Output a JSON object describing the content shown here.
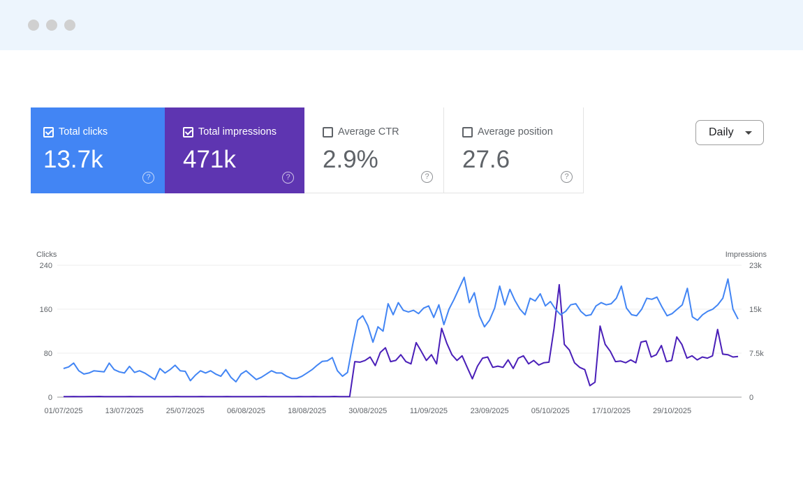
{
  "window": {
    "controls": [
      "dot-1",
      "dot-2",
      "dot-3"
    ]
  },
  "cards": [
    {
      "id": "clicks",
      "label": "Total clicks",
      "value": "13.7k",
      "checked": true,
      "color": "#4285f4"
    },
    {
      "id": "impressions",
      "label": "Total impressions",
      "value": "471k",
      "checked": true,
      "color": "#5e35b1"
    },
    {
      "id": "ctr",
      "label": "Average CTR",
      "value": "2.9%",
      "checked": false,
      "color": "#ffffff"
    },
    {
      "id": "position",
      "label": "Average position",
      "value": "27.6",
      "checked": false,
      "color": "#ffffff"
    }
  ],
  "help_glyph": "?",
  "granularity": {
    "selected": "Daily"
  },
  "chart_data": {
    "type": "line",
    "title": "",
    "xlabel": "",
    "ylabel_left": "Clicks",
    "ylabel_right": "Impressions",
    "yticks_left": [
      "0",
      "80",
      "160",
      "240"
    ],
    "yticks_right": [
      "0",
      "7.5k",
      "15k",
      "23k"
    ],
    "ylim_left": [
      0,
      240
    ],
    "ylim_right": [
      0,
      23000
    ],
    "xtick_labels": [
      "01/07/2025",
      "13/07/2025",
      "25/07/2025",
      "06/08/2025",
      "18/08/2025",
      "30/08/2025",
      "11/09/2025",
      "23/09/2025",
      "05/10/2025",
      "17/10/2025",
      "29/10/2025"
    ],
    "grid": true,
    "legend": "none",
    "x_start": "01/07/2025",
    "x_end": "31/10/2025",
    "series": [
      {
        "name": "Clicks",
        "axis": "left",
        "color": "#4285f4",
        "values": [
          52,
          55,
          62,
          48,
          42,
          44,
          48,
          47,
          46,
          62,
          50,
          46,
          44,
          56,
          45,
          48,
          44,
          38,
          32,
          52,
          44,
          50,
          58,
          48,
          47,
          30,
          40,
          48,
          44,
          48,
          42,
          38,
          50,
          36,
          28,
          42,
          48,
          40,
          32,
          36,
          42,
          48,
          44,
          44,
          38,
          34,
          34,
          38,
          44,
          50,
          58,
          65,
          66,
          72,
          48,
          38,
          45,
          95,
          140,
          148,
          130,
          100,
          128,
          120,
          170,
          150,
          172,
          158,
          155,
          158,
          152,
          162,
          166,
          145,
          168,
          132,
          160,
          178,
          198,
          218,
          172,
          190,
          148,
          128,
          140,
          162,
          202,
          168,
          196,
          176,
          160,
          150,
          180,
          175,
          188,
          166,
          174,
          160,
          150,
          156,
          168,
          170,
          156,
          148,
          150,
          166,
          172,
          168,
          170,
          180,
          202,
          162,
          150,
          148,
          160,
          180,
          178,
          182,
          164,
          148,
          152,
          160,
          168,
          198,
          146,
          140,
          150,
          156,
          160,
          168,
          180,
          215,
          160,
          142
        ]
      },
      {
        "name": "Impressions",
        "axis": "right",
        "color": "#4a1fb8",
        "values": [
          100,
          100,
          110,
          100,
          100,
          110,
          110,
          120,
          100,
          100,
          90,
          100,
          100,
          110,
          100,
          90,
          100,
          100,
          100,
          100,
          90,
          100,
          110,
          100,
          100,
          100,
          100,
          110,
          100,
          90,
          100,
          100,
          110,
          100,
          100,
          90,
          100,
          100,
          100,
          110,
          100,
          90,
          100,
          100,
          100,
          100,
          110,
          100,
          100,
          110,
          100,
          100,
          100,
          120,
          100,
          100,
          100,
          6200,
          6100,
          6400,
          7000,
          5500,
          7800,
          8600,
          6200,
          6400,
          7400,
          6200,
          5800,
          9500,
          8000,
          6400,
          7400,
          5800,
          12000,
          9400,
          7400,
          6400,
          7200,
          5200,
          3200,
          5400,
          6800,
          7000,
          5200,
          5400,
          5200,
          6500,
          5000,
          6800,
          7200,
          5800,
          6400,
          5600,
          6000,
          6100,
          12000,
          19600,
          9200,
          8200,
          6000,
          5200,
          4800,
          2000,
          2600,
          12400,
          9200,
          8000,
          6200,
          6300,
          6000,
          6500,
          6000,
          9600,
          9800,
          7000,
          7400,
          9000,
          6200,
          6400,
          10500,
          9200,
          6800,
          7200,
          6500,
          7000,
          6800,
          7200,
          11800,
          7500,
          7400,
          7000,
          7100
        ]
      }
    ]
  }
}
